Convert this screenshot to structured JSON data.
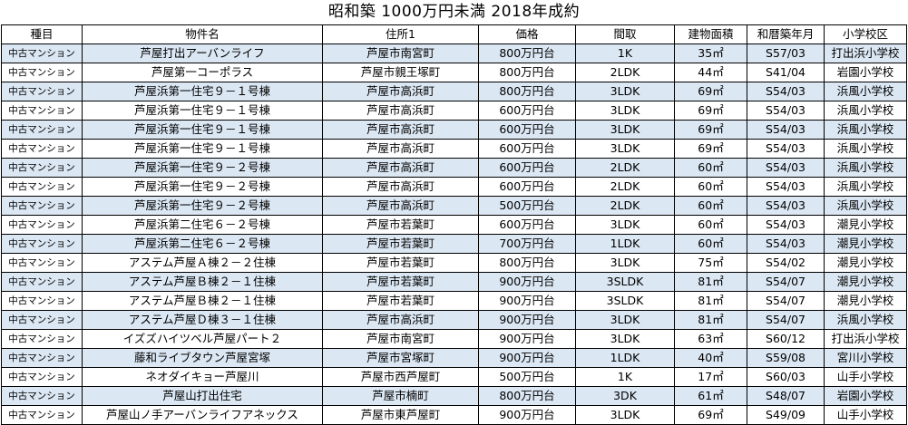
{
  "title": "昭和築 1000万円未満 2018年成約",
  "headers": [
    "種目",
    "物件名",
    "住所1",
    "価格",
    "間取",
    "建物面積",
    "和暦築年月",
    "小学校区"
  ],
  "rows": [
    [
      "中古マンション",
      "芦屋打出アーバンライフ",
      "芦屋市南宮町",
      "800万円台",
      "1K",
      "35㎡",
      "S57/03",
      "打出浜小学校"
    ],
    [
      "中古マンション",
      "芦屋第一コーポラス",
      "芦屋市親王塚町",
      "800万円台",
      "2LDK",
      "44㎡",
      "S41/04",
      "岩園小学校"
    ],
    [
      "中古マンション",
      "芦屋浜第一住宅９－１号棟",
      "芦屋市高浜町",
      "800万円台",
      "3LDK",
      "69㎡",
      "S54/03",
      "浜風小学校"
    ],
    [
      "中古マンション",
      "芦屋浜第一住宅９－１号棟",
      "芦屋市高浜町",
      "600万円台",
      "3LDK",
      "69㎡",
      "S54/03",
      "浜風小学校"
    ],
    [
      "中古マンション",
      "芦屋浜第一住宅９－１号棟",
      "芦屋市高浜町",
      "600万円台",
      "3LDK",
      "69㎡",
      "S54/03",
      "浜風小学校"
    ],
    [
      "中古マンション",
      "芦屋浜第一住宅９－１号棟",
      "芦屋市高浜町",
      "600万円台",
      "3LDK",
      "69㎡",
      "S54/03",
      "浜風小学校"
    ],
    [
      "中古マンション",
      "芦屋浜第一住宅９－２号棟",
      "芦屋市高浜町",
      "600万円台",
      "2LDK",
      "60㎡",
      "S54/03",
      "浜風小学校"
    ],
    [
      "中古マンション",
      "芦屋浜第一住宅９－２号棟",
      "芦屋市高浜町",
      "600万円台",
      "2LDK",
      "60㎡",
      "S54/03",
      "浜風小学校"
    ],
    [
      "中古マンション",
      "芦屋浜第一住宅９－２号棟",
      "芦屋市高浜町",
      "500万円台",
      "2LDK",
      "60㎡",
      "S54/03",
      "浜風小学校"
    ],
    [
      "中古マンション",
      "芦屋浜第二住宅６－２号棟",
      "芦屋市若葉町",
      "600万円台",
      "3LDK",
      "60㎡",
      "S54/03",
      "潮見小学校"
    ],
    [
      "中古マンション",
      "芦屋浜第二住宅６－２号棟",
      "芦屋市若葉町",
      "700万円台",
      "1LDK",
      "60㎡",
      "S54/03",
      "潮見小学校"
    ],
    [
      "中古マンション",
      "アステム芦屋Ａ棟２－２住棟",
      "芦屋市若葉町",
      "800万円台",
      "3LDK",
      "75㎡",
      "S54/02",
      "潮見小学校"
    ],
    [
      "中古マンション",
      "アステム芦屋Ｂ棟２－１住棟",
      "芦屋市若葉町",
      "900万円台",
      "3SLDK",
      "81㎡",
      "S54/07",
      "潮見小学校"
    ],
    [
      "中古マンション",
      "アステム芦屋Ｂ棟２－１住棟",
      "芦屋市若葉町",
      "900万円台",
      "3SLDK",
      "81㎡",
      "S54/07",
      "潮見小学校"
    ],
    [
      "中古マンション",
      "アステム芦屋Ｄ棟３－１住棟",
      "芦屋市高浜町",
      "900万円台",
      "3LDK",
      "81㎡",
      "S54/07",
      "浜風小学校"
    ],
    [
      "中古マンション",
      "イズズハイツベル芦屋パート２",
      "芦屋市南宮町",
      "900万円台",
      "3LDK",
      "63㎡",
      "S60/12",
      "打出浜小学校"
    ],
    [
      "中古マンション",
      "藤和ライブタウン芦屋宮塚",
      "芦屋市宮塚町",
      "900万円台",
      "1LDK",
      "40㎡",
      "S59/08",
      "宮川小学校"
    ],
    [
      "中古マンション",
      "ネオダイキョー芦屋川",
      "芦屋市西芦屋町",
      "500万円台",
      "1K",
      "17㎡",
      "S60/03",
      "山手小学校"
    ],
    [
      "中古マンション",
      "芦屋山打出住宅",
      "芦屋市楠町",
      "800万円台",
      "3DK",
      "61㎡",
      "S48/07",
      "岩園小学校"
    ],
    [
      "中古マンション",
      "芦屋山ノ手アーバンライフアネックス",
      "芦屋市東芦屋町",
      "900万円台",
      "3LDK",
      "69㎡",
      "S49/09",
      "山手小学校"
    ]
  ],
  "colors": {
    "zebra": "#dbe7f3",
    "border": "#000000",
    "background": "#ffffff"
  }
}
